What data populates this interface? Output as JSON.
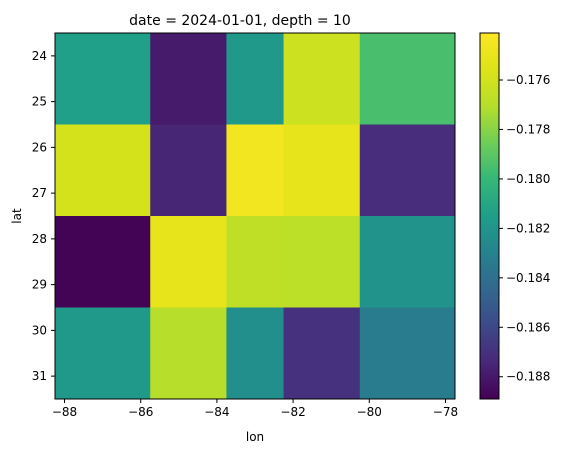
{
  "chart_data": {
    "type": "heatmap",
    "title": "date = 2024-01-01, depth = 10",
    "xlabel": "lon",
    "ylabel": "lat",
    "x_edges": [
      -88.25,
      -85.75,
      -83.75,
      -82.25,
      -80.25,
      -77.75
    ],
    "y_edges": [
      23.5,
      25.5,
      27.5,
      29.5,
      31.5
    ],
    "xlim": [
      -88.25,
      -77.75
    ],
    "ylim_top_to_bottom": [
      23.5,
      31.5
    ],
    "xticks": [
      -88,
      -86,
      -84,
      -82,
      -80,
      -78
    ],
    "yticks": [
      24,
      25,
      26,
      27,
      28,
      29,
      30,
      31
    ],
    "values": [
      [
        -0.1814,
        -0.1879,
        -0.1818,
        -0.1762,
        -0.1795
      ],
      [
        -0.1759,
        -0.1875,
        -0.1746,
        -0.1751,
        -0.1872
      ],
      [
        -0.1888,
        -0.1751,
        -0.1767,
        -0.1768,
        -0.1821
      ],
      [
        -0.1818,
        -0.177,
        -0.1823,
        -0.187,
        -0.1833
      ]
    ],
    "colormap": "viridis",
    "color_range": [
      -0.1889,
      -0.1741
    ],
    "colorbar_ticks": [
      -0.188,
      -0.186,
      -0.184,
      -0.182,
      -0.18,
      -0.178,
      -0.176
    ],
    "colorbar_tick_labels": [
      "−0.188",
      "−0.186",
      "−0.184",
      "−0.182",
      "−0.180",
      "−0.178",
      "−0.176"
    ],
    "grid": false
  }
}
